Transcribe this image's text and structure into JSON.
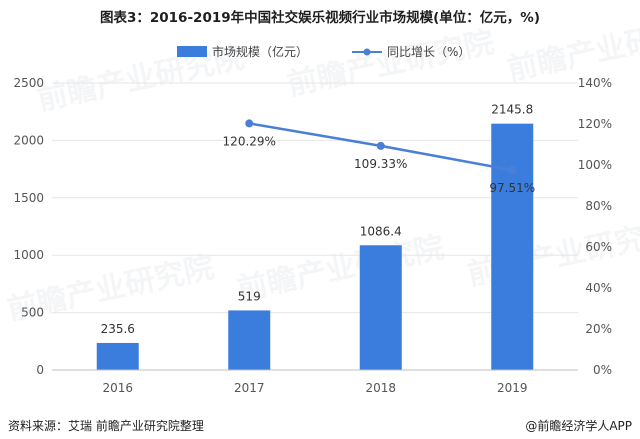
{
  "title": "图表3：2016-2019年中国社交娱乐视频行业市场规模(单位：亿元，%)",
  "source": "资料来源：艾瑞 前瞻产业研究院整理",
  "brand": "@前瞻经济学人APP",
  "watermark": "前瞻产业研究院",
  "colors": {
    "bar": "#3b7ddd",
    "line": "#4a7fd6",
    "grid": "#e6e6e6"
  },
  "chart_data": {
    "type": "bar",
    "categories": [
      "2016",
      "2017",
      "2018",
      "2019"
    ],
    "series": [
      {
        "name": "市场规模（亿元）",
        "type": "bar",
        "axis": "left",
        "values": [
          235.6,
          519,
          1086.4,
          2145.8
        ],
        "labels": [
          "235.6",
          "519",
          "1086.4",
          "2145.8"
        ]
      },
      {
        "name": "同比增长（%）",
        "type": "line",
        "axis": "right",
        "values": [
          null,
          120.29,
          109.33,
          97.51
        ],
        "labels": [
          "",
          "120.29%",
          "109.33%",
          "97.51%"
        ]
      }
    ],
    "y_left": {
      "min": 0,
      "max": 2500,
      "ticks": [
        0,
        500,
        1000,
        1500,
        2000,
        2500
      ]
    },
    "y_right": {
      "min": 0,
      "max": 140,
      "ticks": [
        "0%",
        "20%",
        "40%",
        "60%",
        "80%",
        "100%",
        "120%",
        "140%"
      ]
    },
    "legend_position": "top-center",
    "grid": true
  }
}
